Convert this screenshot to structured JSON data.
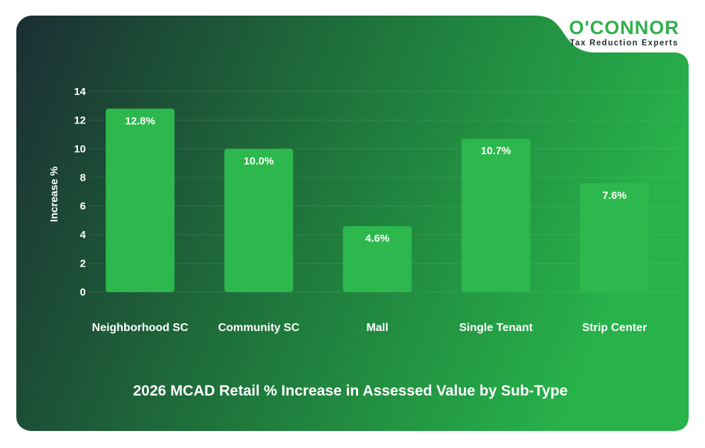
{
  "brand": {
    "name": "O'CONNOR",
    "tagline": "Tax Reduction Experts",
    "accent": "#2fb14a",
    "dark": "#1e2b32"
  },
  "chart_data": {
    "type": "bar",
    "title": "2026 MCAD Retail % Increase in Assessed Value by Sub-Type",
    "ylabel": "Increase %",
    "xlabel": "",
    "categories": [
      "Neighborhood SC",
      "Community SC",
      "Mall",
      "Single Tenant",
      "Strip Center"
    ],
    "values": [
      12.8,
      10.0,
      4.6,
      10.7,
      7.6
    ],
    "data_labels": [
      "12.8%",
      "10.0%",
      "4.6%",
      "10.7%",
      "7.6%"
    ],
    "ylim": [
      0,
      14
    ],
    "yticks": [
      0,
      2,
      4,
      6,
      8,
      10,
      12,
      14
    ],
    "grid": true,
    "bar_color": "#2db84d",
    "background_gradient": [
      "#1b2e33",
      "#27b24a"
    ]
  }
}
